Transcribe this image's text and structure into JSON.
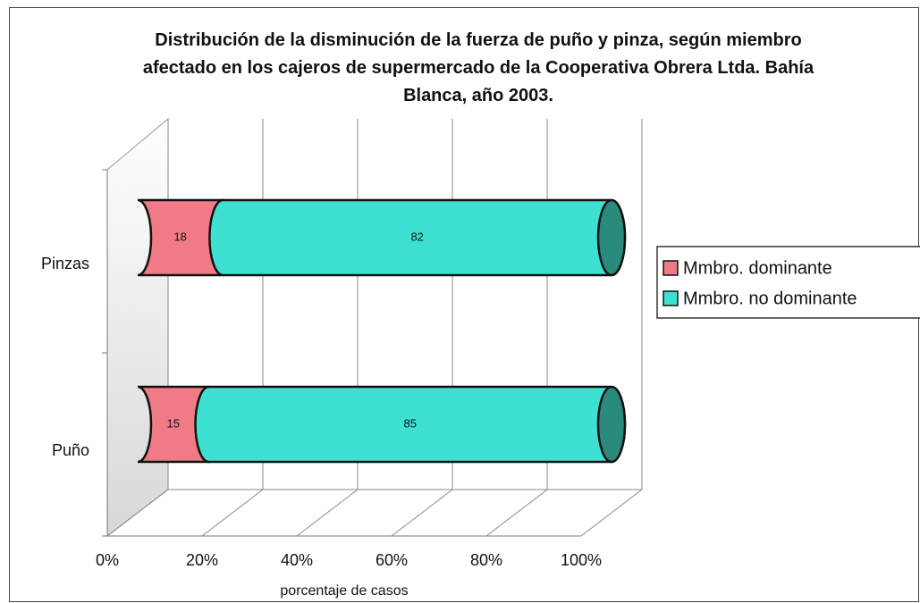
{
  "chart_data": {
    "type": "bar",
    "orientation": "horizontal",
    "stacked": true,
    "style": "3d-cylinder",
    "title": "Distribución de la disminución de la fuerza de puño y pinza, según miembro afectado en los cajeros de supermercado de la Cooperativa Obrera Ltda. Bahía Blanca, año 2003.",
    "xlabel": "porcentaje de casos",
    "categories": [
      "Puño",
      "Pinzas"
    ],
    "series": [
      {
        "name": "Mmbro. dominante",
        "color": "#f07a86",
        "values": [
          15,
          18
        ]
      },
      {
        "name": "Mmbro. no dominante",
        "color": "#3ee0d2",
        "values": [
          85,
          82
        ]
      }
    ],
    "xlim": [
      0,
      100
    ],
    "xticks": [
      {
        "value": 0,
        "label": "0%"
      },
      {
        "value": 20,
        "label": "20%"
      },
      {
        "value": 40,
        "label": "40%"
      },
      {
        "value": 60,
        "label": "60%"
      },
      {
        "value": 80,
        "label": "80%"
      },
      {
        "value": 100,
        "label": "100%"
      }
    ],
    "grid": true,
    "legend": "right"
  }
}
